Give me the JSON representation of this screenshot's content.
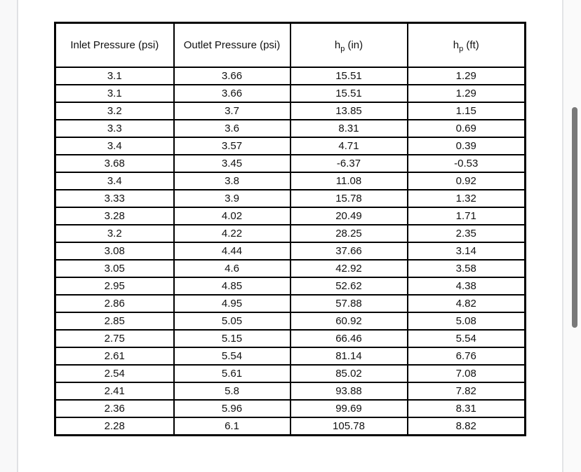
{
  "page": {
    "background_color": "#ffffff",
    "gutter_color": "#f8f8f9",
    "divider_color": "#e0e1e4",
    "scrollbar_thumb_color": "#797979",
    "table_border_color": "#000000",
    "text_color": "#111111"
  },
  "table": {
    "headers": [
      {
        "label": "Inlet Pressure (psi)"
      },
      {
        "label": "Outlet Pressure (psi)"
      },
      {
        "base": "h",
        "sub": "p",
        "rest": " (in)"
      },
      {
        "base": "h",
        "sub": "p",
        "rest": " (ft)"
      }
    ]
  },
  "chart_data": {
    "type": "table",
    "columns": [
      "Inlet Pressure (psi)",
      "Outlet Pressure (psi)",
      "hp (in)",
      "hp (ft)"
    ],
    "rows": [
      [
        "3.1",
        "3.66",
        "15.51",
        "1.29"
      ],
      [
        "3.1",
        "3.66",
        "15.51",
        "1.29"
      ],
      [
        "3.2",
        "3.7",
        "13.85",
        "1.15"
      ],
      [
        "3.3",
        "3.6",
        "8.31",
        "0.69"
      ],
      [
        "3.4",
        "3.57",
        "4.71",
        "0.39"
      ],
      [
        "3.68",
        "3.45",
        "-6.37",
        "-0.53"
      ],
      [
        "3.4",
        "3.8",
        "11.08",
        "0.92"
      ],
      [
        "3.33",
        "3.9",
        "15.78",
        "1.32"
      ],
      [
        "3.28",
        "4.02",
        "20.49",
        "1.71"
      ],
      [
        "3.2",
        "4.22",
        "28.25",
        "2.35"
      ],
      [
        "3.08",
        "4.44",
        "37.66",
        "3.14"
      ],
      [
        "3.05",
        "4.6",
        "42.92",
        "3.58"
      ],
      [
        "2.95",
        "4.85",
        "52.62",
        "4.38"
      ],
      [
        "2.86",
        "4.95",
        "57.88",
        "4.82"
      ],
      [
        "2.85",
        "5.05",
        "60.92",
        "5.08"
      ],
      [
        "2.75",
        "5.15",
        "66.46",
        "5.54"
      ],
      [
        "2.61",
        "5.54",
        "81.14",
        "6.76"
      ],
      [
        "2.54",
        "5.61",
        "85.02",
        "7.08"
      ],
      [
        "2.41",
        "5.8",
        "93.88",
        "7.82"
      ],
      [
        "2.36",
        "5.96",
        "99.69",
        "8.31"
      ],
      [
        "2.28",
        "6.1",
        "105.78",
        "8.82"
      ]
    ]
  }
}
